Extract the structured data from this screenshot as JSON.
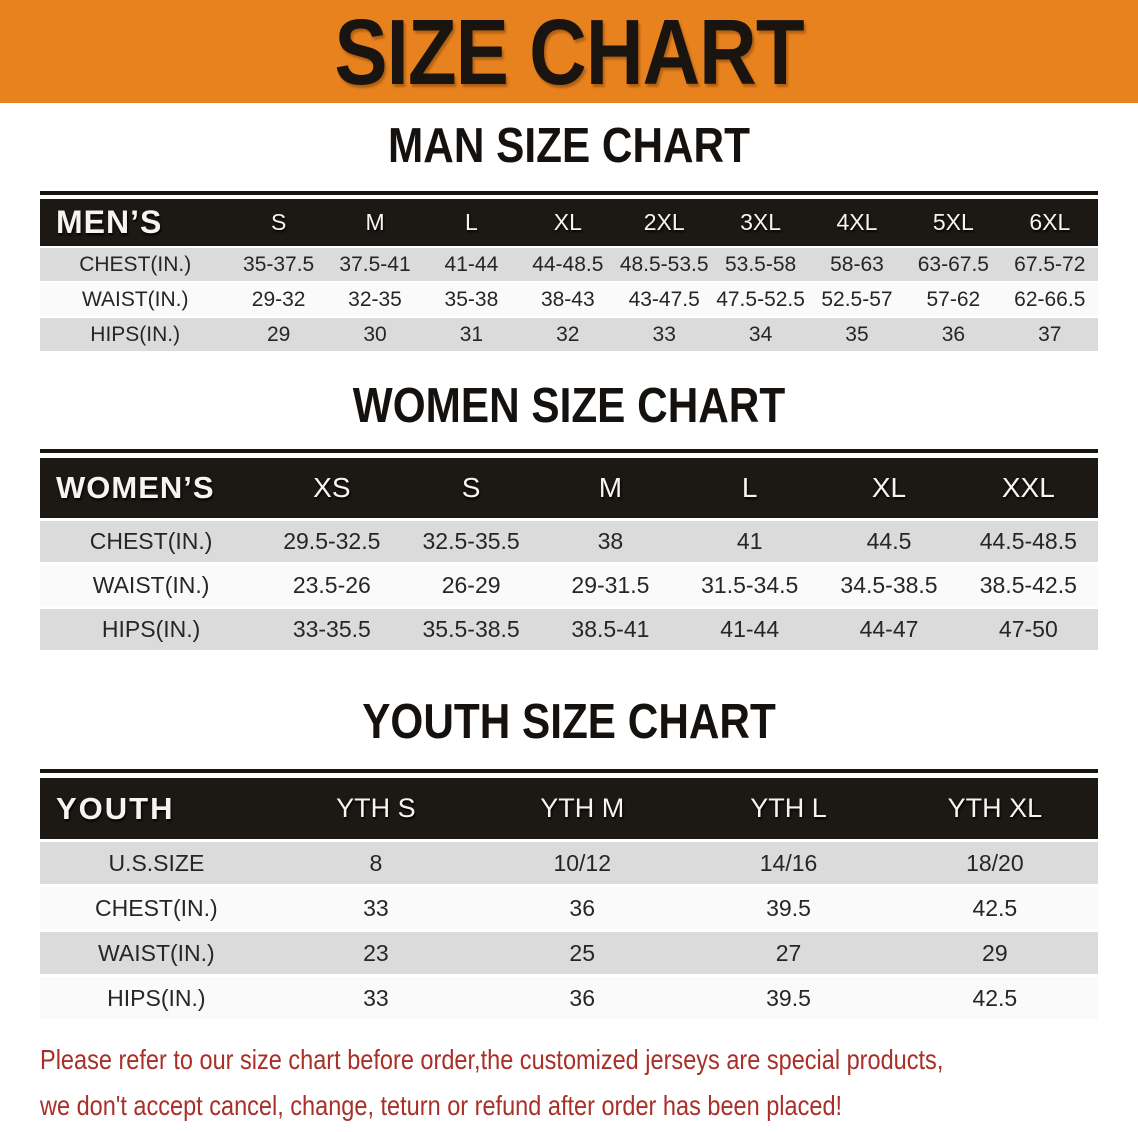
{
  "banner": {
    "title": "SIZE CHART"
  },
  "sections": {
    "men": {
      "heading": "MAN SIZE CHART",
      "table": {
        "header": [
          "MEN’S",
          "S",
          "M",
          "L",
          "XL",
          "2XL",
          "3XL",
          "4XL",
          "5XL",
          "6XL"
        ],
        "rows": [
          {
            "label": "CHEST(IN.)",
            "values": [
              "35-37.5",
              "37.5-41",
              "41-44",
              "44-48.5",
              "48.5-53.5",
              "53.5-58",
              "58-63",
              "63-67.5",
              "67.5-72"
            ]
          },
          {
            "label": "WAIST(IN.)",
            "values": [
              "29-32",
              "32-35",
              "35-38",
              "38-43",
              "43-47.5",
              "47.5-52.5",
              "52.5-57",
              "57-62",
              "62-66.5"
            ]
          },
          {
            "label": "HIPS(IN.)",
            "values": [
              "29",
              "30",
              "31",
              "32",
              "33",
              "34",
              "35",
              "36",
              "37"
            ]
          }
        ]
      }
    },
    "women": {
      "heading": "WOMEN SIZE CHART",
      "table": {
        "header": [
          "WOMEN’S",
          "XS",
          "S",
          "M",
          "L",
          "XL",
          "XXL"
        ],
        "rows": [
          {
            "label": "CHEST(IN.)",
            "values": [
              "29.5-32.5",
              "32.5-35.5",
              "38",
              "41",
              "44.5",
              "44.5-48.5"
            ]
          },
          {
            "label": "WAIST(IN.)",
            "values": [
              "23.5-26",
              "26-29",
              "29-31.5",
              "31.5-34.5",
              "34.5-38.5",
              "38.5-42.5"
            ]
          },
          {
            "label": "HIPS(IN.)",
            "values": [
              "33-35.5",
              "35.5-38.5",
              "38.5-41",
              "41-44",
              "44-47",
              "47-50"
            ]
          }
        ]
      }
    },
    "youth": {
      "heading": "YOUTH SIZE CHART",
      "table": {
        "header": [
          "YOUTH",
          "YTH S",
          "YTH M",
          "YTH L",
          "YTH XL"
        ],
        "rows": [
          {
            "label": "U.S.SIZE",
            "values": [
              "8",
              "10/12",
              "14/16",
              "18/20"
            ]
          },
          {
            "label": "CHEST(IN.)",
            "values": [
              "33",
              "36",
              "39.5",
              "42.5"
            ]
          },
          {
            "label": "WAIST(IN.)",
            "values": [
              "23",
              "25",
              "27",
              "29"
            ]
          },
          {
            "label": "HIPS(IN.)",
            "values": [
              "33",
              "36",
              "39.5",
              "42.5"
            ]
          }
        ]
      }
    }
  },
  "disclaimer": {
    "line1": "Please refer to our size chart before order,the customized jerseys are special products,",
    "line2": "we don't accept cancel, change, teturn or refund after order has been placed!"
  },
  "colors": {
    "orange_banner": "#E8821E",
    "table_header_bg": "#1C1814",
    "row_stripe_gray": "#DBDBDB",
    "row_stripe_white": "#FAFAFA",
    "disclaimer_red": "#A93029"
  }
}
